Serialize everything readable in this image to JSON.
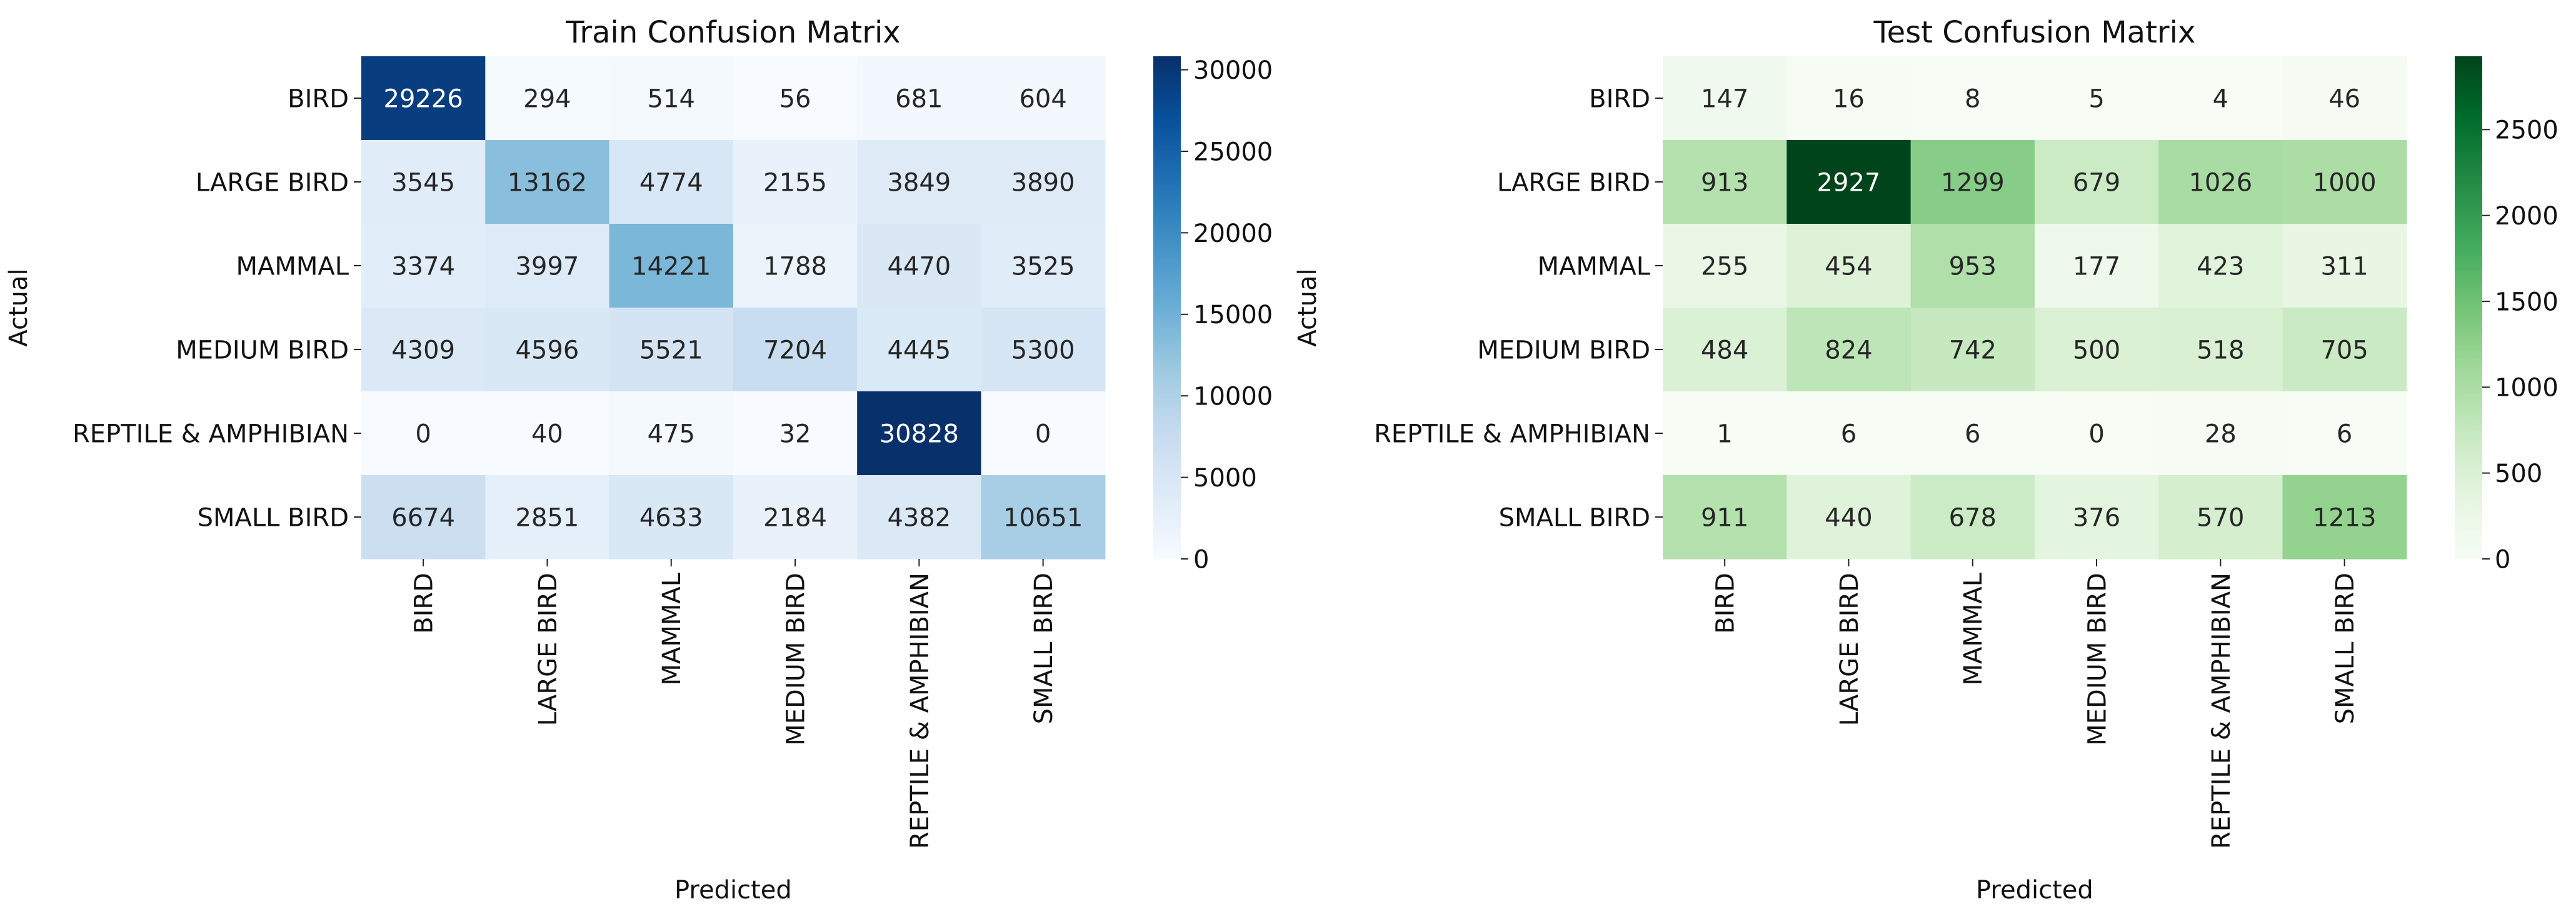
{
  "chart_data": [
    {
      "type": "heatmap",
      "title": "Train Confusion Matrix",
      "xlabel": "Predicted",
      "ylabel": "Actual",
      "x_categories": [
        "BIRD",
        "LARGE BIRD",
        "MAMMAL",
        "MEDIUM BIRD",
        "REPTILE & AMPHIBIAN",
        "SMALL BIRD"
      ],
      "y_categories": [
        "BIRD",
        "LARGE BIRD",
        "MAMMAL",
        "MEDIUM BIRD",
        "REPTILE & AMPHIBIAN",
        "SMALL BIRD"
      ],
      "values": [
        [
          29226,
          294,
          514,
          56,
          681,
          604
        ],
        [
          3545,
          13162,
          4774,
          2155,
          3849,
          3890
        ],
        [
          3374,
          3997,
          14221,
          1788,
          4470,
          3525
        ],
        [
          4309,
          4596,
          5521,
          7204,
          4445,
          5300
        ],
        [
          0,
          40,
          475,
          32,
          30828,
          0
        ],
        [
          6674,
          2851,
          4633,
          2184,
          4382,
          10651
        ]
      ],
      "colormap": "Blues",
      "colorbar": {
        "min": 0,
        "max": 30828,
        "ticks": [
          0,
          5000,
          10000,
          15000,
          20000,
          25000,
          30000
        ]
      }
    },
    {
      "type": "heatmap",
      "title": "Test Confusion Matrix",
      "xlabel": "Predicted",
      "ylabel": "Actual",
      "x_categories": [
        "BIRD",
        "LARGE BIRD",
        "MAMMAL",
        "MEDIUM BIRD",
        "REPTILE & AMPHIBIAN",
        "SMALL BIRD"
      ],
      "y_categories": [
        "BIRD",
        "LARGE BIRD",
        "MAMMAL",
        "MEDIUM BIRD",
        "REPTILE & AMPHIBIAN",
        "SMALL BIRD"
      ],
      "values": [
        [
          147,
          16,
          8,
          5,
          4,
          46
        ],
        [
          913,
          2927,
          1299,
          679,
          1026,
          1000
        ],
        [
          255,
          454,
          953,
          177,
          423,
          311
        ],
        [
          484,
          824,
          742,
          500,
          518,
          705
        ],
        [
          1,
          6,
          6,
          0,
          28,
          6
        ],
        [
          911,
          440,
          678,
          376,
          570,
          1213
        ]
      ],
      "colormap": "Greens",
      "colorbar": {
        "min": 0,
        "max": 2927,
        "ticks": [
          0,
          500,
          1000,
          1500,
          2000,
          2500
        ]
      }
    }
  ]
}
